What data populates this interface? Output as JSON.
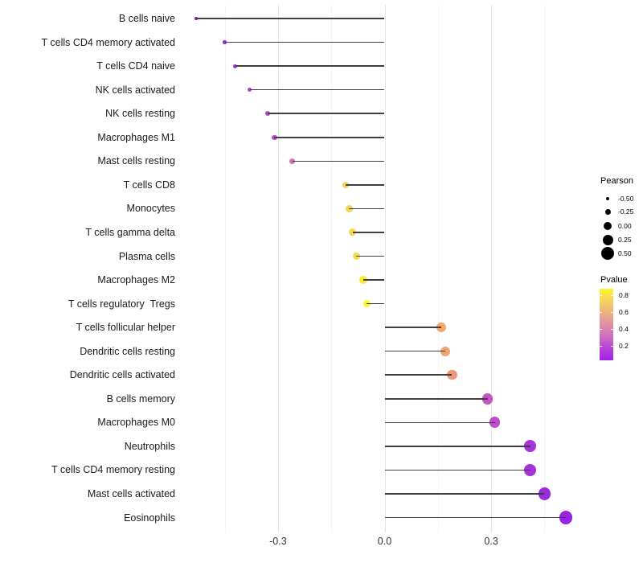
{
  "chart_data": {
    "type": "scatter",
    "subtype": "lollipop",
    "title": "",
    "xlabel": "",
    "ylabel": "",
    "xlim": [
      -0.585,
      0.568
    ],
    "grid": true,
    "x_axis": {
      "major_ticks": [
        {
          "value": -0.3,
          "label": "-0.3"
        },
        {
          "value": 0.0,
          "label": "0.0"
        },
        {
          "value": 0.3,
          "label": "0.3"
        }
      ],
      "minor_gridlines": [
        -0.45,
        -0.15,
        0.15,
        0.45
      ]
    },
    "rows": [
      {
        "label": "B cells naive",
        "pearson": -0.53,
        "pvalue": 0.04,
        "color": "#8E1FE0"
      },
      {
        "label": "T cells CD4 memory activated",
        "pearson": -0.45,
        "pvalue": 0.07,
        "color": "#9A2BDB"
      },
      {
        "label": "T cells CD4 naive",
        "pearson": -0.42,
        "pvalue": 0.09,
        "color": "#A033D7"
      },
      {
        "label": "NK cells activated",
        "pearson": -0.38,
        "pvalue": 0.12,
        "color": "#A93CD2"
      },
      {
        "label": "NK cells resting",
        "pearson": -0.33,
        "pvalue": 0.18,
        "color": "#B748CC"
      },
      {
        "label": "Macrophages M1",
        "pearson": -0.31,
        "pvalue": 0.2,
        "color": "#BD4FC8"
      },
      {
        "label": "Mast cells resting",
        "pearson": -0.26,
        "pvalue": 0.28,
        "color": "#CD74B6"
      },
      {
        "label": "T cells CD8",
        "pearson": -0.11,
        "pvalue": 0.68,
        "color": "#F0D75A"
      },
      {
        "label": "Monocytes",
        "pearson": -0.1,
        "pvalue": 0.7,
        "color": "#F1D957"
      },
      {
        "label": "T cells gamma delta",
        "pearson": -0.09,
        "pvalue": 0.72,
        "color": "#F2DB53"
      },
      {
        "label": "Plasma cells",
        "pearson": -0.08,
        "pvalue": 0.74,
        "color": "#F4DE4E"
      },
      {
        "label": "Macrophages M2",
        "pearson": -0.06,
        "pvalue": 0.84,
        "color": "#F9EF38"
      },
      {
        "label": "T cells regulatory  Tregs",
        "pearson": -0.05,
        "pvalue": 0.86,
        "color": "#FAF42E"
      },
      {
        "label": "T cells follicular helper",
        "pearson": 0.16,
        "pvalue": 0.48,
        "color": "#F2A76D"
      },
      {
        "label": "Dendritic cells resting",
        "pearson": 0.17,
        "pvalue": 0.46,
        "color": "#F1A371"
      },
      {
        "label": "Dendritic cells activated",
        "pearson": 0.19,
        "pvalue": 0.43,
        "color": "#EE9778"
      },
      {
        "label": "B cells memory",
        "pearson": 0.29,
        "pvalue": 0.19,
        "color": "#C453C6"
      },
      {
        "label": "Macrophages M0",
        "pearson": 0.31,
        "pvalue": 0.17,
        "color": "#C14CCA"
      },
      {
        "label": "Neutrophils",
        "pearson": 0.41,
        "pvalue": 0.1,
        "color": "#A434D8"
      },
      {
        "label": "T cells CD4 memory resting",
        "pearson": 0.41,
        "pvalue": 0.1,
        "color": "#A434D8"
      },
      {
        "label": "Mast cells activated",
        "pearson": 0.45,
        "pvalue": 0.07,
        "color": "#9C2BDE"
      },
      {
        "label": "Eosinophils",
        "pearson": 0.51,
        "pvalue": 0.04,
        "color": "#9A22E2"
      }
    ],
    "legend_size": {
      "title": "Pearson",
      "entries": [
        {
          "value": -0.5,
          "label": "-0.50"
        },
        {
          "value": -0.25,
          "label": "-0.25"
        },
        {
          "value": 0.0,
          "label": "0.00"
        },
        {
          "value": 0.25,
          "label": "0.25"
        },
        {
          "value": 0.5,
          "label": "0.50"
        }
      ],
      "dot_color": "#000000"
    },
    "legend_color": {
      "title": "Pvalue",
      "range": [
        0.03,
        0.88
      ],
      "ticks": [
        {
          "value": 0.8,
          "label": "0.8"
        },
        {
          "value": 0.6,
          "label": "0.6"
        },
        {
          "value": 0.4,
          "label": "0.4"
        },
        {
          "value": 0.2,
          "label": "0.2"
        }
      ],
      "gradient_stops": [
        {
          "pos": 0.0,
          "color": "#A021EC"
        },
        {
          "pos": 0.2,
          "color": "#BC4BD0"
        },
        {
          "pos": 0.35,
          "color": "#CE74BC"
        },
        {
          "pos": 0.55,
          "color": "#E39A9B"
        },
        {
          "pos": 0.72,
          "color": "#F0BC77"
        },
        {
          "pos": 0.88,
          "color": "#F6DC55"
        },
        {
          "pos": 1.0,
          "color": "#FBF42E"
        }
      ]
    },
    "style": {
      "stick_color": "#3f3f3f",
      "major_grid_color": "#e6e6e6",
      "minor_grid_color": "#f3f3f3"
    }
  }
}
